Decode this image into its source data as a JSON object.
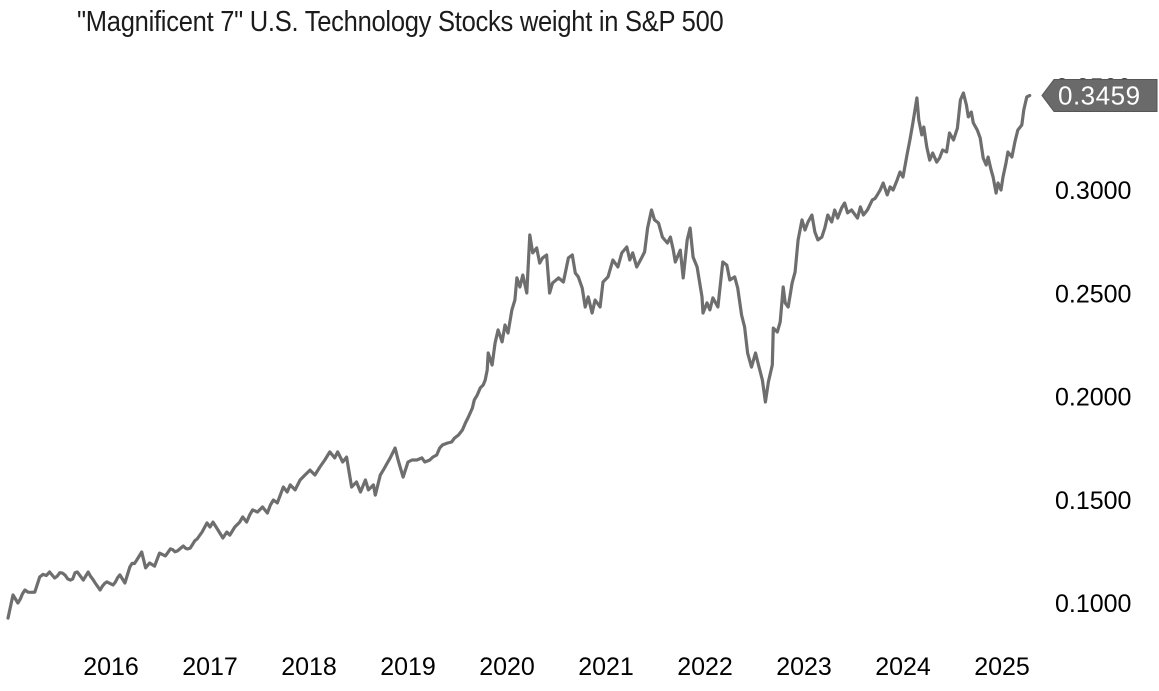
{
  "title": "\"Magnificent 7\" U.S. Technology Stocks weight in S&P 500",
  "colors": {
    "line": "#6e6e6e",
    "badge_bg": "#6a6a6a",
    "badge_border": "#565656",
    "badge_text": "#ffffff",
    "axis_text": "#000000",
    "title_text": "#1b1b1b",
    "background": "#ffffff"
  },
  "chart_data": {
    "type": "line",
    "title": "\"Magnificent 7\" U.S. Technology Stocks weight in S&P 500",
    "xlabel": "",
    "ylabel": "",
    "grid": false,
    "legend": "none",
    "x_range": [
      2014.96,
      2025.28
    ],
    "y_range": [
      0.09,
      0.355
    ],
    "x_ticks": [
      {
        "value": 2016,
        "label": "2016"
      },
      {
        "value": 2017,
        "label": "2017"
      },
      {
        "value": 2018,
        "label": "2018"
      },
      {
        "value": 2019,
        "label": "2019"
      },
      {
        "value": 2020,
        "label": "2020"
      },
      {
        "value": 2021,
        "label": "2021"
      },
      {
        "value": 2022,
        "label": "2022"
      },
      {
        "value": 2023,
        "label": "2023"
      },
      {
        "value": 2024,
        "label": "2024"
      },
      {
        "value": 2025,
        "label": "2025"
      }
    ],
    "y_ticks": [
      {
        "value": 0.35,
        "label": "0.3500"
      },
      {
        "value": 0.3,
        "label": "0.3000"
      },
      {
        "value": 0.25,
        "label": "0.2500"
      },
      {
        "value": 0.2,
        "label": "0.2000"
      },
      {
        "value": 0.15,
        "label": "0.1500"
      },
      {
        "value": 0.1,
        "label": "0.1000"
      }
    ],
    "last_value": 0.3459,
    "last_value_label": "0.3459",
    "series": [
      {
        "name": "Magnificent 7 weight in S&P 500",
        "points": [
          [
            2014.96,
            0.0927
          ],
          [
            2015.01,
            0.1039
          ],
          [
            2015.06,
            0.1
          ],
          [
            2015.13,
            0.1063
          ],
          [
            2015.23,
            0.1053
          ],
          [
            2015.28,
            0.1126
          ],
          [
            2015.38,
            0.115
          ],
          [
            2015.43,
            0.1121
          ],
          [
            2015.51,
            0.1145
          ],
          [
            2015.59,
            0.1111
          ],
          [
            2015.66,
            0.115
          ],
          [
            2015.72,
            0.1111
          ],
          [
            2015.77,
            0.115
          ],
          [
            2015.84,
            0.1097
          ],
          [
            2015.89,
            0.1063
          ],
          [
            2015.96,
            0.1102
          ],
          [
            2016.02,
            0.1087
          ],
          [
            2016.09,
            0.1136
          ],
          [
            2016.14,
            0.1097
          ],
          [
            2016.19,
            0.1174
          ],
          [
            2016.26,
            0.1208
          ],
          [
            2016.31,
            0.1247
          ],
          [
            2016.35,
            0.117
          ],
          [
            2016.39,
            0.1194
          ],
          [
            2016.44,
            0.1179
          ],
          [
            2016.49,
            0.1242
          ],
          [
            2016.55,
            0.1228
          ],
          [
            2016.6,
            0.1262
          ],
          [
            2016.67,
            0.1252
          ],
          [
            2016.73,
            0.1276
          ],
          [
            2016.8,
            0.1266
          ],
          [
            2016.87,
            0.131
          ],
          [
            2016.92,
            0.1344
          ],
          [
            2016.97,
            0.1388
          ],
          [
            2017.0,
            0.1368
          ],
          [
            2017.03,
            0.1392
          ],
          [
            2017.08,
            0.1354
          ],
          [
            2017.13,
            0.1315
          ],
          [
            2017.17,
            0.1344
          ],
          [
            2017.2,
            0.1329
          ],
          [
            2017.25,
            0.1368
          ],
          [
            2017.3,
            0.1392
          ],
          [
            2017.33,
            0.1417
          ],
          [
            2017.37,
            0.1392
          ],
          [
            2017.4,
            0.1426
          ],
          [
            2017.43,
            0.1451
          ],
          [
            2017.48,
            0.1441
          ],
          [
            2017.53,
            0.1465
          ],
          [
            2017.58,
            0.1436
          ],
          [
            2017.61,
            0.1475
          ],
          [
            2017.64,
            0.1499
          ],
          [
            2017.68,
            0.1485
          ],
          [
            2017.71,
            0.1523
          ],
          [
            2017.74,
            0.1562
          ],
          [
            2017.78,
            0.1538
          ],
          [
            2017.81,
            0.1572
          ],
          [
            2017.86,
            0.1548
          ],
          [
            2017.91,
            0.1596
          ],
          [
            2017.96,
            0.162
          ],
          [
            2018.01,
            0.1644
          ],
          [
            2018.06,
            0.162
          ],
          [
            2018.11,
            0.1659
          ],
          [
            2018.16,
            0.1693
          ],
          [
            2018.21,
            0.1732
          ],
          [
            2018.26,
            0.1703
          ],
          [
            2018.29,
            0.1732
          ],
          [
            2018.34,
            0.1683
          ],
          [
            2018.38,
            0.1707
          ],
          [
            2018.43,
            0.1562
          ],
          [
            2018.48,
            0.1586
          ],
          [
            2018.52,
            0.1538
          ],
          [
            2018.57,
            0.1596
          ],
          [
            2018.6,
            0.1548
          ],
          [
            2018.65,
            0.1572
          ],
          [
            2018.67,
            0.1523
          ],
          [
            2018.72,
            0.162
          ],
          [
            2018.75,
            0.1644
          ],
          [
            2018.79,
            0.1678
          ],
          [
            2018.82,
            0.1703
          ],
          [
            2018.87,
            0.1751
          ],
          [
            2018.9,
            0.1693
          ],
          [
            2018.95,
            0.161
          ],
          [
            2019.0,
            0.1683
          ],
          [
            2019.04,
            0.1693
          ],
          [
            2019.09,
            0.1693
          ],
          [
            2019.14,
            0.1703
          ],
          [
            2019.17,
            0.1683
          ],
          [
            2019.22,
            0.1693
          ],
          [
            2019.25,
            0.1707
          ],
          [
            2019.29,
            0.1717
          ],
          [
            2019.32,
            0.1751
          ],
          [
            2019.35,
            0.1766
          ],
          [
            2019.4,
            0.1775
          ],
          [
            2019.44,
            0.178
          ],
          [
            2019.47,
            0.1799
          ],
          [
            2019.51,
            0.1814
          ],
          [
            2019.55,
            0.1838
          ],
          [
            2019.58,
            0.1872
          ],
          [
            2019.61,
            0.1901
          ],
          [
            2019.65,
            0.1945
          ],
          [
            2019.67,
            0.1984
          ],
          [
            2019.7,
            0.2008
          ],
          [
            2019.73,
            0.2042
          ],
          [
            2019.76,
            0.2056
          ],
          [
            2019.78,
            0.208
          ],
          [
            2019.8,
            0.2129
          ],
          [
            2019.81,
            0.2211
          ],
          [
            2019.85,
            0.2153
          ],
          [
            2019.88,
            0.226
          ],
          [
            2019.91,
            0.2323
          ],
          [
            2019.95,
            0.2265
          ],
          [
            2019.98,
            0.2347
          ],
          [
            2020.01,
            0.2308
          ],
          [
            2020.05,
            0.242
          ],
          [
            2020.08,
            0.2468
          ],
          [
            2020.1,
            0.2575
          ],
          [
            2020.13,
            0.2531
          ],
          [
            2020.16,
            0.2589
          ],
          [
            2020.2,
            0.2502
          ],
          [
            2020.23,
            0.2783
          ],
          [
            2020.26,
            0.2696
          ],
          [
            2020.3,
            0.272
          ],
          [
            2020.33,
            0.2647
          ],
          [
            2020.36,
            0.2672
          ],
          [
            2020.4,
            0.2686
          ],
          [
            2020.43,
            0.2502
          ],
          [
            2020.46,
            0.255
          ],
          [
            2020.52,
            0.2575
          ],
          [
            2020.57,
            0.2555
          ],
          [
            2020.62,
            0.2672
          ],
          [
            2020.66,
            0.2686
          ],
          [
            2020.69,
            0.2599
          ],
          [
            2020.72,
            0.258
          ],
          [
            2020.76,
            0.2526
          ],
          [
            2020.79,
            0.2434
          ],
          [
            2020.82,
            0.2483
          ],
          [
            2020.86,
            0.2405
          ],
          [
            2020.89,
            0.2468
          ],
          [
            2020.94,
            0.2434
          ],
          [
            2020.97,
            0.2555
          ],
          [
            2021.02,
            0.258
          ],
          [
            2021.07,
            0.2662
          ],
          [
            2021.12,
            0.2628
          ],
          [
            2021.16,
            0.2696
          ],
          [
            2021.21,
            0.2725
          ],
          [
            2021.24,
            0.2662
          ],
          [
            2021.27,
            0.2696
          ],
          [
            2021.31,
            0.2628
          ],
          [
            2021.36,
            0.2672
          ],
          [
            2021.39,
            0.2701
          ],
          [
            2021.42,
            0.2817
          ],
          [
            2021.46,
            0.2904
          ],
          [
            2021.49,
            0.2856
          ],
          [
            2021.53,
            0.2841
          ],
          [
            2021.57,
            0.2773
          ],
          [
            2021.62,
            0.2744
          ],
          [
            2021.65,
            0.2773
          ],
          [
            2021.68,
            0.271
          ],
          [
            2021.7,
            0.2652
          ],
          [
            2021.75,
            0.271
          ],
          [
            2021.78,
            0.2575
          ],
          [
            2021.82,
            0.2759
          ],
          [
            2021.85,
            0.2817
          ],
          [
            2021.88,
            0.2676
          ],
          [
            2021.92,
            0.2628
          ],
          [
            2021.97,
            0.2483
          ],
          [
            2021.98,
            0.2405
          ],
          [
            2022.02,
            0.2454
          ],
          [
            2022.05,
            0.242
          ],
          [
            2022.08,
            0.2478
          ],
          [
            2022.13,
            0.2434
          ],
          [
            2022.18,
            0.2652
          ],
          [
            2022.22,
            0.2637
          ],
          [
            2022.25,
            0.2565
          ],
          [
            2022.3,
            0.258
          ],
          [
            2022.33,
            0.2526
          ],
          [
            2022.37,
            0.2395
          ],
          [
            2022.4,
            0.2337
          ],
          [
            2022.43,
            0.2211
          ],
          [
            2022.47,
            0.2143
          ],
          [
            2022.51,
            0.2211
          ],
          [
            2022.54,
            0.2153
          ],
          [
            2022.58,
            0.208
          ],
          [
            2022.61,
            0.1974
          ],
          [
            2022.64,
            0.2071
          ],
          [
            2022.68,
            0.2153
          ],
          [
            2022.69,
            0.2332
          ],
          [
            2022.73,
            0.2313
          ],
          [
            2022.76,
            0.2362
          ],
          [
            2022.79,
            0.2531
          ],
          [
            2022.81,
            0.2454
          ],
          [
            2022.84,
            0.2434
          ],
          [
            2022.88,
            0.255
          ],
          [
            2022.91,
            0.2604
          ],
          [
            2022.94,
            0.2759
          ],
          [
            2022.98,
            0.2856
          ],
          [
            2023.01,
            0.2807
          ],
          [
            2023.04,
            0.2846
          ],
          [
            2023.08,
            0.288
          ],
          [
            2023.11,
            0.2797
          ],
          [
            2023.14,
            0.2759
          ],
          [
            2023.18,
            0.2773
          ],
          [
            2023.21,
            0.2817
          ],
          [
            2023.24,
            0.288
          ],
          [
            2023.28,
            0.2846
          ],
          [
            2023.31,
            0.2904
          ],
          [
            2023.34,
            0.2865
          ],
          [
            2023.38,
            0.2914
          ],
          [
            2023.41,
            0.2938
          ],
          [
            2023.44,
            0.289
          ],
          [
            2023.48,
            0.2904
          ],
          [
            2023.54,
            0.2865
          ],
          [
            2023.57,
            0.2919
          ],
          [
            2023.6,
            0.288
          ],
          [
            2023.64,
            0.2904
          ],
          [
            2023.69,
            0.2953
          ],
          [
            2023.77,
            0.3001
          ],
          [
            2023.8,
            0.3035
          ],
          [
            2023.84,
            0.2977
          ],
          [
            2023.87,
            0.3016
          ],
          [
            2023.9,
            0.3001
          ],
          [
            2023.94,
            0.3049
          ],
          [
            2023.97,
            0.3088
          ],
          [
            2024.0,
            0.3064
          ],
          [
            2024.04,
            0.3171
          ],
          [
            2024.07,
            0.3243
          ],
          [
            2024.1,
            0.3326
          ],
          [
            2024.14,
            0.3447
          ],
          [
            2024.16,
            0.334
          ],
          [
            2024.19,
            0.3268
          ],
          [
            2024.21,
            0.3306
          ],
          [
            2024.24,
            0.3209
          ],
          [
            2024.27,
            0.3146
          ],
          [
            2024.3,
            0.318
          ],
          [
            2024.34,
            0.3136
          ],
          [
            2024.37,
            0.3156
          ],
          [
            2024.4,
            0.3195
          ],
          [
            2024.44,
            0.3185
          ],
          [
            2024.47,
            0.3277
          ],
          [
            2024.51,
            0.3243
          ],
          [
            2024.55,
            0.3301
          ],
          [
            2024.58,
            0.3437
          ],
          [
            2024.61,
            0.3471
          ],
          [
            2024.64,
            0.3413
          ],
          [
            2024.66,
            0.3355
          ],
          [
            2024.69,
            0.3379
          ],
          [
            2024.71,
            0.3326
          ],
          [
            2024.75,
            0.3291
          ],
          [
            2024.78,
            0.3253
          ],
          [
            2024.81,
            0.3156
          ],
          [
            2024.84,
            0.3122
          ],
          [
            2024.86,
            0.3161
          ],
          [
            2024.89,
            0.3098
          ],
          [
            2024.91,
            0.3064
          ],
          [
            2024.94,
            0.2986
          ],
          [
            2024.96,
            0.3035
          ],
          [
            2024.99,
            0.3001
          ],
          [
            2025.01,
            0.3064
          ],
          [
            2025.04,
            0.3132
          ],
          [
            2025.06,
            0.3185
          ],
          [
            2025.1,
            0.3161
          ],
          [
            2025.13,
            0.3234
          ],
          [
            2025.16,
            0.3291
          ],
          [
            2025.2,
            0.3316
          ],
          [
            2025.22,
            0.3389
          ],
          [
            2025.25,
            0.3452
          ],
          [
            2025.28,
            0.3459
          ]
        ]
      }
    ]
  }
}
